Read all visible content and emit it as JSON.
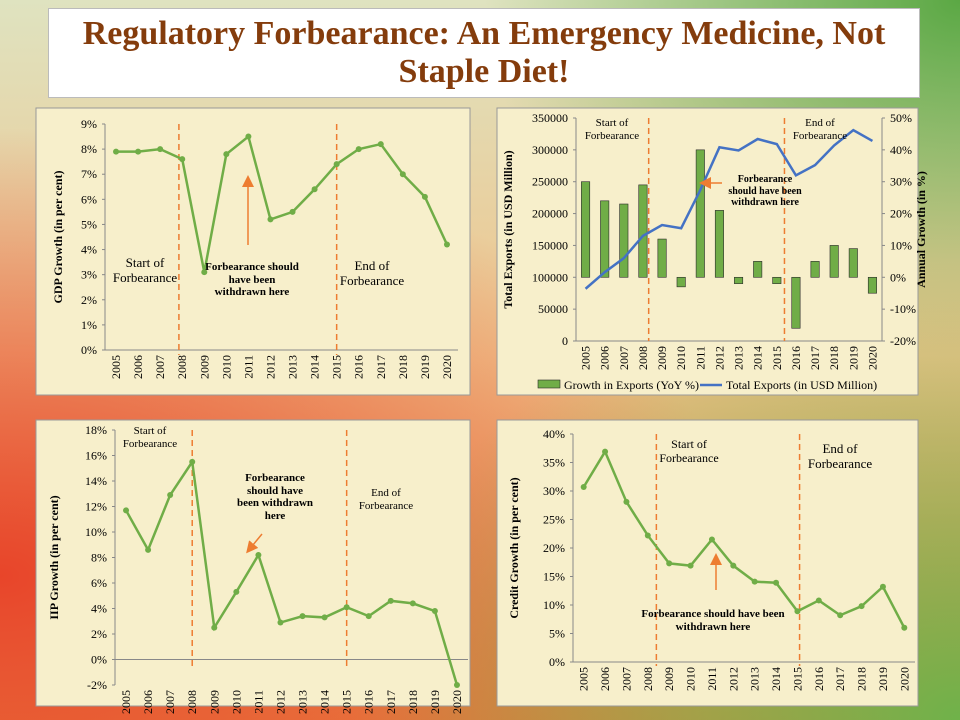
{
  "title": "Regulatory Forbearance: An Emergency Medicine, Not Staple Diet!",
  "chart_data": [
    {
      "type": "line",
      "y_label": "GDP Growth (in per cent)",
      "categories": [
        "2005",
        "2006",
        "2007",
        "2008",
        "2009",
        "2010",
        "2011",
        "2012",
        "2013",
        "2014",
        "2015",
        "2016",
        "2017",
        "2018",
        "2019",
        "2020"
      ],
      "values": [
        7.9,
        7.9,
        8.0,
        7.6,
        3.1,
        7.8,
        8.5,
        5.2,
        5.5,
        6.4,
        7.4,
        8.0,
        8.2,
        7.0,
        6.1,
        4.2
      ],
      "color": "#70ad47",
      "ylim": [
        0,
        9
      ],
      "yticks": [
        {
          "value": 0,
          "label": "0%"
        },
        {
          "value": 1,
          "label": "1%"
        },
        {
          "value": 2,
          "label": "2%"
        },
        {
          "value": 3,
          "label": "3%"
        },
        {
          "value": 4,
          "label": "4%"
        },
        {
          "value": 5,
          "label": "5%"
        },
        {
          "value": 6,
          "label": "6%"
        },
        {
          "value": 7,
          "label": "7%"
        },
        {
          "value": 8,
          "label": "8%"
        },
        {
          "value": 9,
          "label": "9%"
        }
      ],
      "annotations": [
        "Start of Forbearance",
        "Forbearance should have been withdrawn here",
        "End of Forbearance"
      ]
    },
    {
      "type": "bar-line",
      "y_label": "Total Exports (in USD Million)",
      "y2_label": "Annual Growth (in %)",
      "categories": [
        "2005",
        "2006",
        "2007",
        "2008",
        "2009",
        "2010",
        "2011",
        "2012",
        "2013",
        "2014",
        "2015",
        "2016",
        "2017",
        "2018",
        "2019",
        "2020"
      ],
      "series": [
        {
          "name": "Growth in Exports (YoY %)",
          "type": "bar",
          "axis": "y2",
          "color": "#70ad47",
          "values": [
            30,
            24,
            23,
            29,
            12,
            -3,
            40,
            21,
            -2,
            5,
            -2,
            -16,
            5,
            10,
            9,
            -5
          ]
        },
        {
          "name": "Total Exports (in USD Million)",
          "type": "line",
          "color": "#4472c4",
          "values": [
            82000,
            108000,
            130000,
            165000,
            182000,
            177000,
            237000,
            304000,
            299000,
            317000,
            309000,
            260000,
            276000,
            307000,
            331000,
            314000
          ]
        }
      ],
      "ylim": [
        0,
        350000
      ],
      "yticks": [
        0,
        50000,
        100000,
        150000,
        200000,
        250000,
        300000,
        350000
      ],
      "y2lim": [
        -20,
        50
      ],
      "y2ticks": [
        {
          "value": -20,
          "label": "-20%"
        },
        {
          "value": -10,
          "label": "-10%"
        },
        {
          "value": 0,
          "label": "0%"
        },
        {
          "value": 10,
          "label": "10%"
        },
        {
          "value": 20,
          "label": "20%"
        },
        {
          "value": 30,
          "label": "30%"
        },
        {
          "value": 40,
          "label": "40%"
        },
        {
          "value": 50,
          "label": "50%"
        }
      ],
      "legend": "bottom",
      "annotations": [
        "Start of Forbearance",
        "Forbearance should have been withdrawn here",
        "End of Forbearance"
      ]
    },
    {
      "type": "line",
      "y_label": "IIP Growth (in per cent)",
      "categories": [
        "2005",
        "2006",
        "2007",
        "2008",
        "2009",
        "2010",
        "2011",
        "2012",
        "2013",
        "2014",
        "2015",
        "2016",
        "2017",
        "2018",
        "2019",
        "2020"
      ],
      "values": [
        11.7,
        8.6,
        12.9,
        15.5,
        2.5,
        5.3,
        8.2,
        2.9,
        3.4,
        3.3,
        4.1,
        3.4,
        4.6,
        4.4,
        3.8,
        -2
      ],
      "color": "#70ad47",
      "ylim": [
        -2,
        18
      ],
      "yticks": [
        {
          "value": -2,
          "label": "-2%"
        },
        {
          "value": 0,
          "label": "0%"
        },
        {
          "value": 2,
          "label": "2%"
        },
        {
          "value": 4,
          "label": "4%"
        },
        {
          "value": 6,
          "label": "6%"
        },
        {
          "value": 8,
          "label": "8%"
        },
        {
          "value": 10,
          "label": "10%"
        },
        {
          "value": 12,
          "label": "12%"
        },
        {
          "value": 14,
          "label": "14%"
        },
        {
          "value": 16,
          "label": "16%"
        },
        {
          "value": 18,
          "label": "18%"
        }
      ],
      "annotations": [
        "Start of Forbearance",
        "Forbearance should have been withdrawn here",
        "End of Forbearance"
      ]
    },
    {
      "type": "line",
      "y_label": "Credit Growth (in per cent)",
      "categories": [
        "2005",
        "2006",
        "2007",
        "2008",
        "2009",
        "2010",
        "2011",
        "2012",
        "2013",
        "2014",
        "2015",
        "2016",
        "2017",
        "2018",
        "2019",
        "2020"
      ],
      "values": [
        30.7,
        36.9,
        28.1,
        22.2,
        17.3,
        16.9,
        21.5,
        16.9,
        14.1,
        13.9,
        8.9,
        10.8,
        8.2,
        9.8,
        13.2,
        6.0
      ],
      "color": "#70ad47",
      "ylim": [
        0,
        40
      ],
      "yticks": [
        {
          "value": 0,
          "label": "0%"
        },
        {
          "value": 5,
          "label": "5%"
        },
        {
          "value": 10,
          "label": "10%"
        },
        {
          "value": 15,
          "label": "15%"
        },
        {
          "value": 20,
          "label": "20%"
        },
        {
          "value": 25,
          "label": "25%"
        },
        {
          "value": 30,
          "label": "30%"
        },
        {
          "value": 35,
          "label": "35%"
        },
        {
          "value": 40,
          "label": "40%"
        }
      ],
      "annotations": [
        "Start of Forbearance",
        "Forbearance should have been withdrawn here",
        "End of Forbearance"
      ]
    }
  ]
}
